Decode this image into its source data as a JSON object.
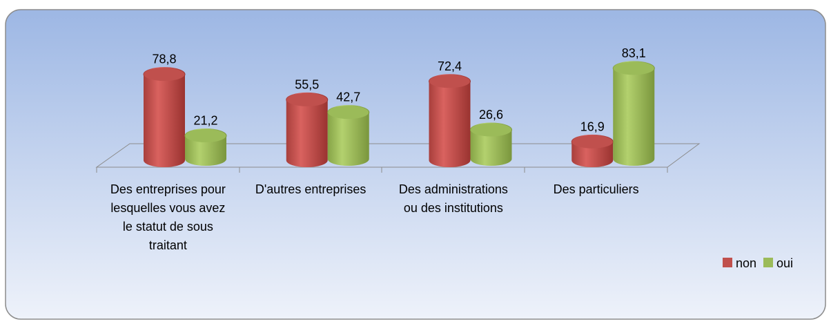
{
  "chart_data": {
    "type": "bar3d",
    "categories": [
      "Des entreprises pour lesquelles vous avez le statut de sous traitant",
      "D'autres entreprises",
      "Des administrations ou des institutions",
      "Des particuliers"
    ],
    "series": [
      {
        "name": "non",
        "color": "#c0504d",
        "values": [
          78.8,
          55.5,
          72.4,
          16.9
        ],
        "value_labels": [
          "78,8",
          "55,5",
          "72,4",
          "16,9"
        ]
      },
      {
        "name": "oui",
        "color": "#9bbb59",
        "values": [
          21.2,
          42.7,
          26.6,
          83.1
        ],
        "value_labels": [
          "21,2",
          "42,7",
          "26,6",
          "83,1"
        ]
      }
    ],
    "ylim": [
      0,
      90
    ],
    "legend": "right"
  }
}
